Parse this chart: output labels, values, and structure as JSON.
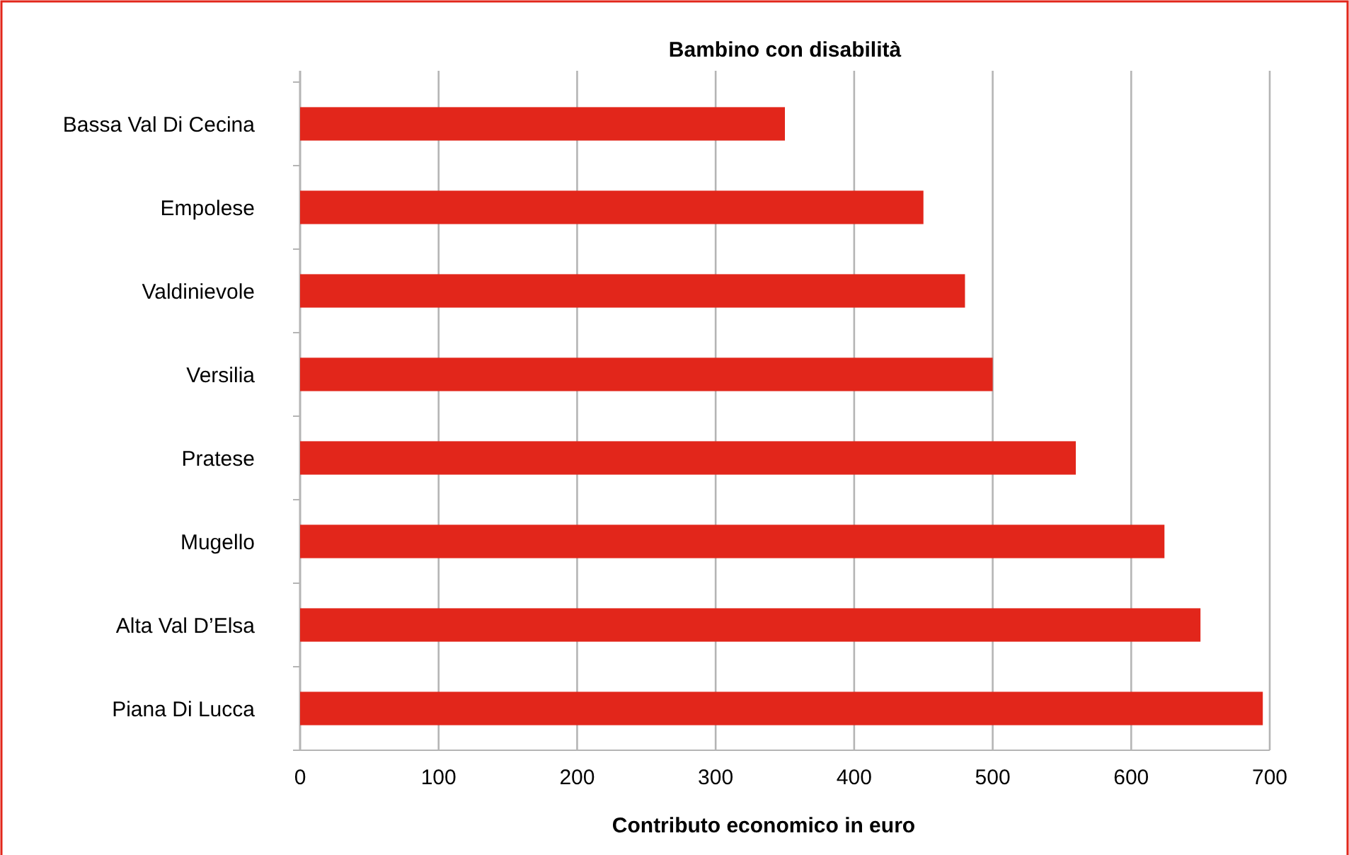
{
  "chart_data": {
    "type": "bar",
    "orientation": "horizontal",
    "title": "Bambino con disabilità",
    "xlabel": "Contributo economico in euro",
    "categories": [
      "Bassa Val Di Cecina",
      "Empolese",
      "Valdinievole",
      "Versilia",
      "Pratese",
      "Mugello",
      "Alta Val D’Elsa",
      "Piana Di Lucca"
    ],
    "values": [
      350,
      450,
      480,
      500,
      560,
      624,
      650,
      695
    ],
    "color": "#e2261b",
    "xlim": [
      0,
      700
    ],
    "xticks": [
      0,
      100,
      200,
      300,
      400,
      500,
      600,
      700
    ],
    "grid": "x"
  }
}
